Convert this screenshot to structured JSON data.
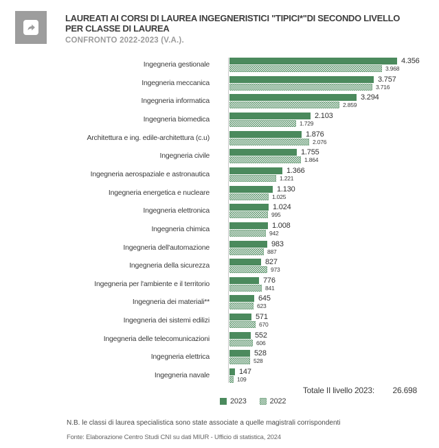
{
  "header": {
    "title_line1": "LAUREATI AI CORSI DI LAUREA INGEGNERISTICI \"TIPICI*\"DI SECONDO LIVELLO",
    "title_line2": "PER CLASSE DI LAUREA",
    "subtitle": "CONFRONTO 2022-2023 (V.A.)."
  },
  "chart_data": {
    "type": "bar",
    "orientation": "horizontal",
    "title": "Laureati ai corsi di laurea ingegneristici tipici di secondo livello per classe di laurea",
    "xlabel": "",
    "ylabel": "",
    "xlim": [
      0,
      4356
    ],
    "grid": false,
    "legend_position": "bottom",
    "colors": {
      "solid_2023": "#4b8a5d",
      "dotted_2022": "#4b8a5d"
    },
    "categories": [
      "Ingegneria gestionale",
      "Ingegneria meccanica",
      "Ingegneria informatica",
      "Ingegneria biomedica",
      "Architettura e ing. edile-architettura (c.u)",
      "Ingegneria civile",
      "Ingegneria aerospaziale e astronautica",
      "Ingegneria energetica e nucleare",
      "Ingegneria elettronica",
      "Ingegneria chimica",
      "Ingegneria dell'automazione",
      "Ingegneria della sicurezza",
      "Ingegneria per l'ambiente e il territorio",
      "Ingegneria dei materiali**",
      "Ingegneria dei sistemi edilizi",
      "Ingegneria delle telecomunicazioni",
      "Ingegneria elettrica",
      "Ingegneria navale"
    ],
    "series": [
      {
        "name": "2023",
        "style": "solid",
        "values": [
          4356,
          3757,
          3294,
          2103,
          1876,
          1755,
          1366,
          1130,
          1024,
          1008,
          983,
          827,
          776,
          645,
          571,
          552,
          528,
          147
        ],
        "labels": [
          "4.356",
          "3.757",
          "3.294",
          "2.103",
          "1.876",
          "1.755",
          "1.366",
          "1.130",
          "1.024",
          "1.008",
          "983",
          "827",
          "776",
          "645",
          "571",
          "552",
          "528",
          "147"
        ]
      },
      {
        "name": "2022",
        "style": "dotted",
        "values": [
          3968,
          3716,
          2859,
          1729,
          2076,
          1864,
          1221,
          1025,
          995,
          942,
          887,
          973,
          841,
          623,
          670,
          606,
          528,
          109
        ],
        "labels": [
          "3.968",
          "3.716",
          "2.859",
          "1.729",
          "2.076",
          "1.864",
          "1.221",
          "1.025",
          "995",
          "942",
          "887",
          "973",
          "841",
          "623",
          "670",
          "606",
          "528",
          "109"
        ]
      }
    ],
    "total_label": "Totale II livello 2023:",
    "total_value": "26.698"
  },
  "footer": {
    "note": "N.B. le classi di laurea specialistica sono state associate a quelle magistrali corrispondenti",
    "source": "Fonte: Elaborazione Centro Studi CNI su dati MIUR - Ufficio di statistica, 2024"
  }
}
